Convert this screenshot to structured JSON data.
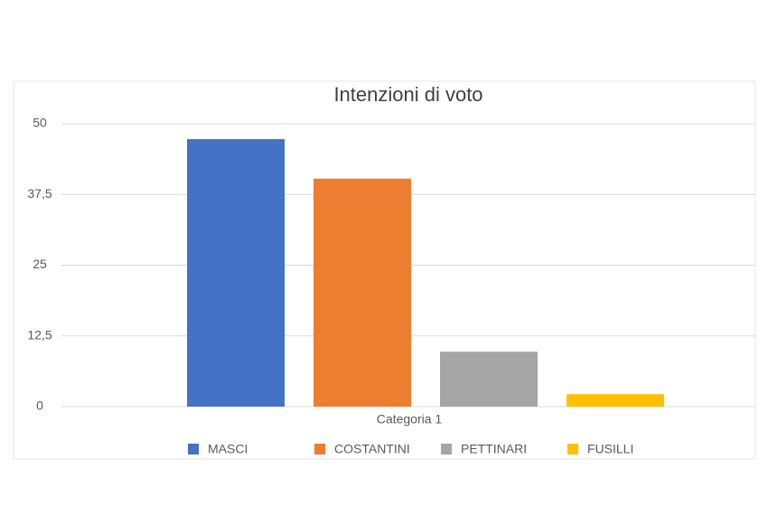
{
  "chart_data": {
    "type": "bar",
    "title": "Intenzioni di voto",
    "categories": [
      "Categoria 1"
    ],
    "series": [
      {
        "name": "MASCI",
        "color": "#4472c4",
        "values": [
          47.3
        ]
      },
      {
        "name": "COSTANTINI",
        "color": "#ed7d31",
        "values": [
          40.3
        ]
      },
      {
        "name": "PETTINARI",
        "color": "#a5a5a5",
        "values": [
          9.7
        ]
      },
      {
        "name": "FUSILLI",
        "color": "#ffc000",
        "values": [
          2.2
        ]
      }
    ],
    "ylim": [
      0,
      50
    ],
    "yticks": [
      0,
      {
        "value": 12.5,
        "label": "12,5"
      },
      25,
      {
        "value": 37.5,
        "label": "37,5"
      },
      50
    ],
    "grid": true,
    "legend": "bottom"
  }
}
